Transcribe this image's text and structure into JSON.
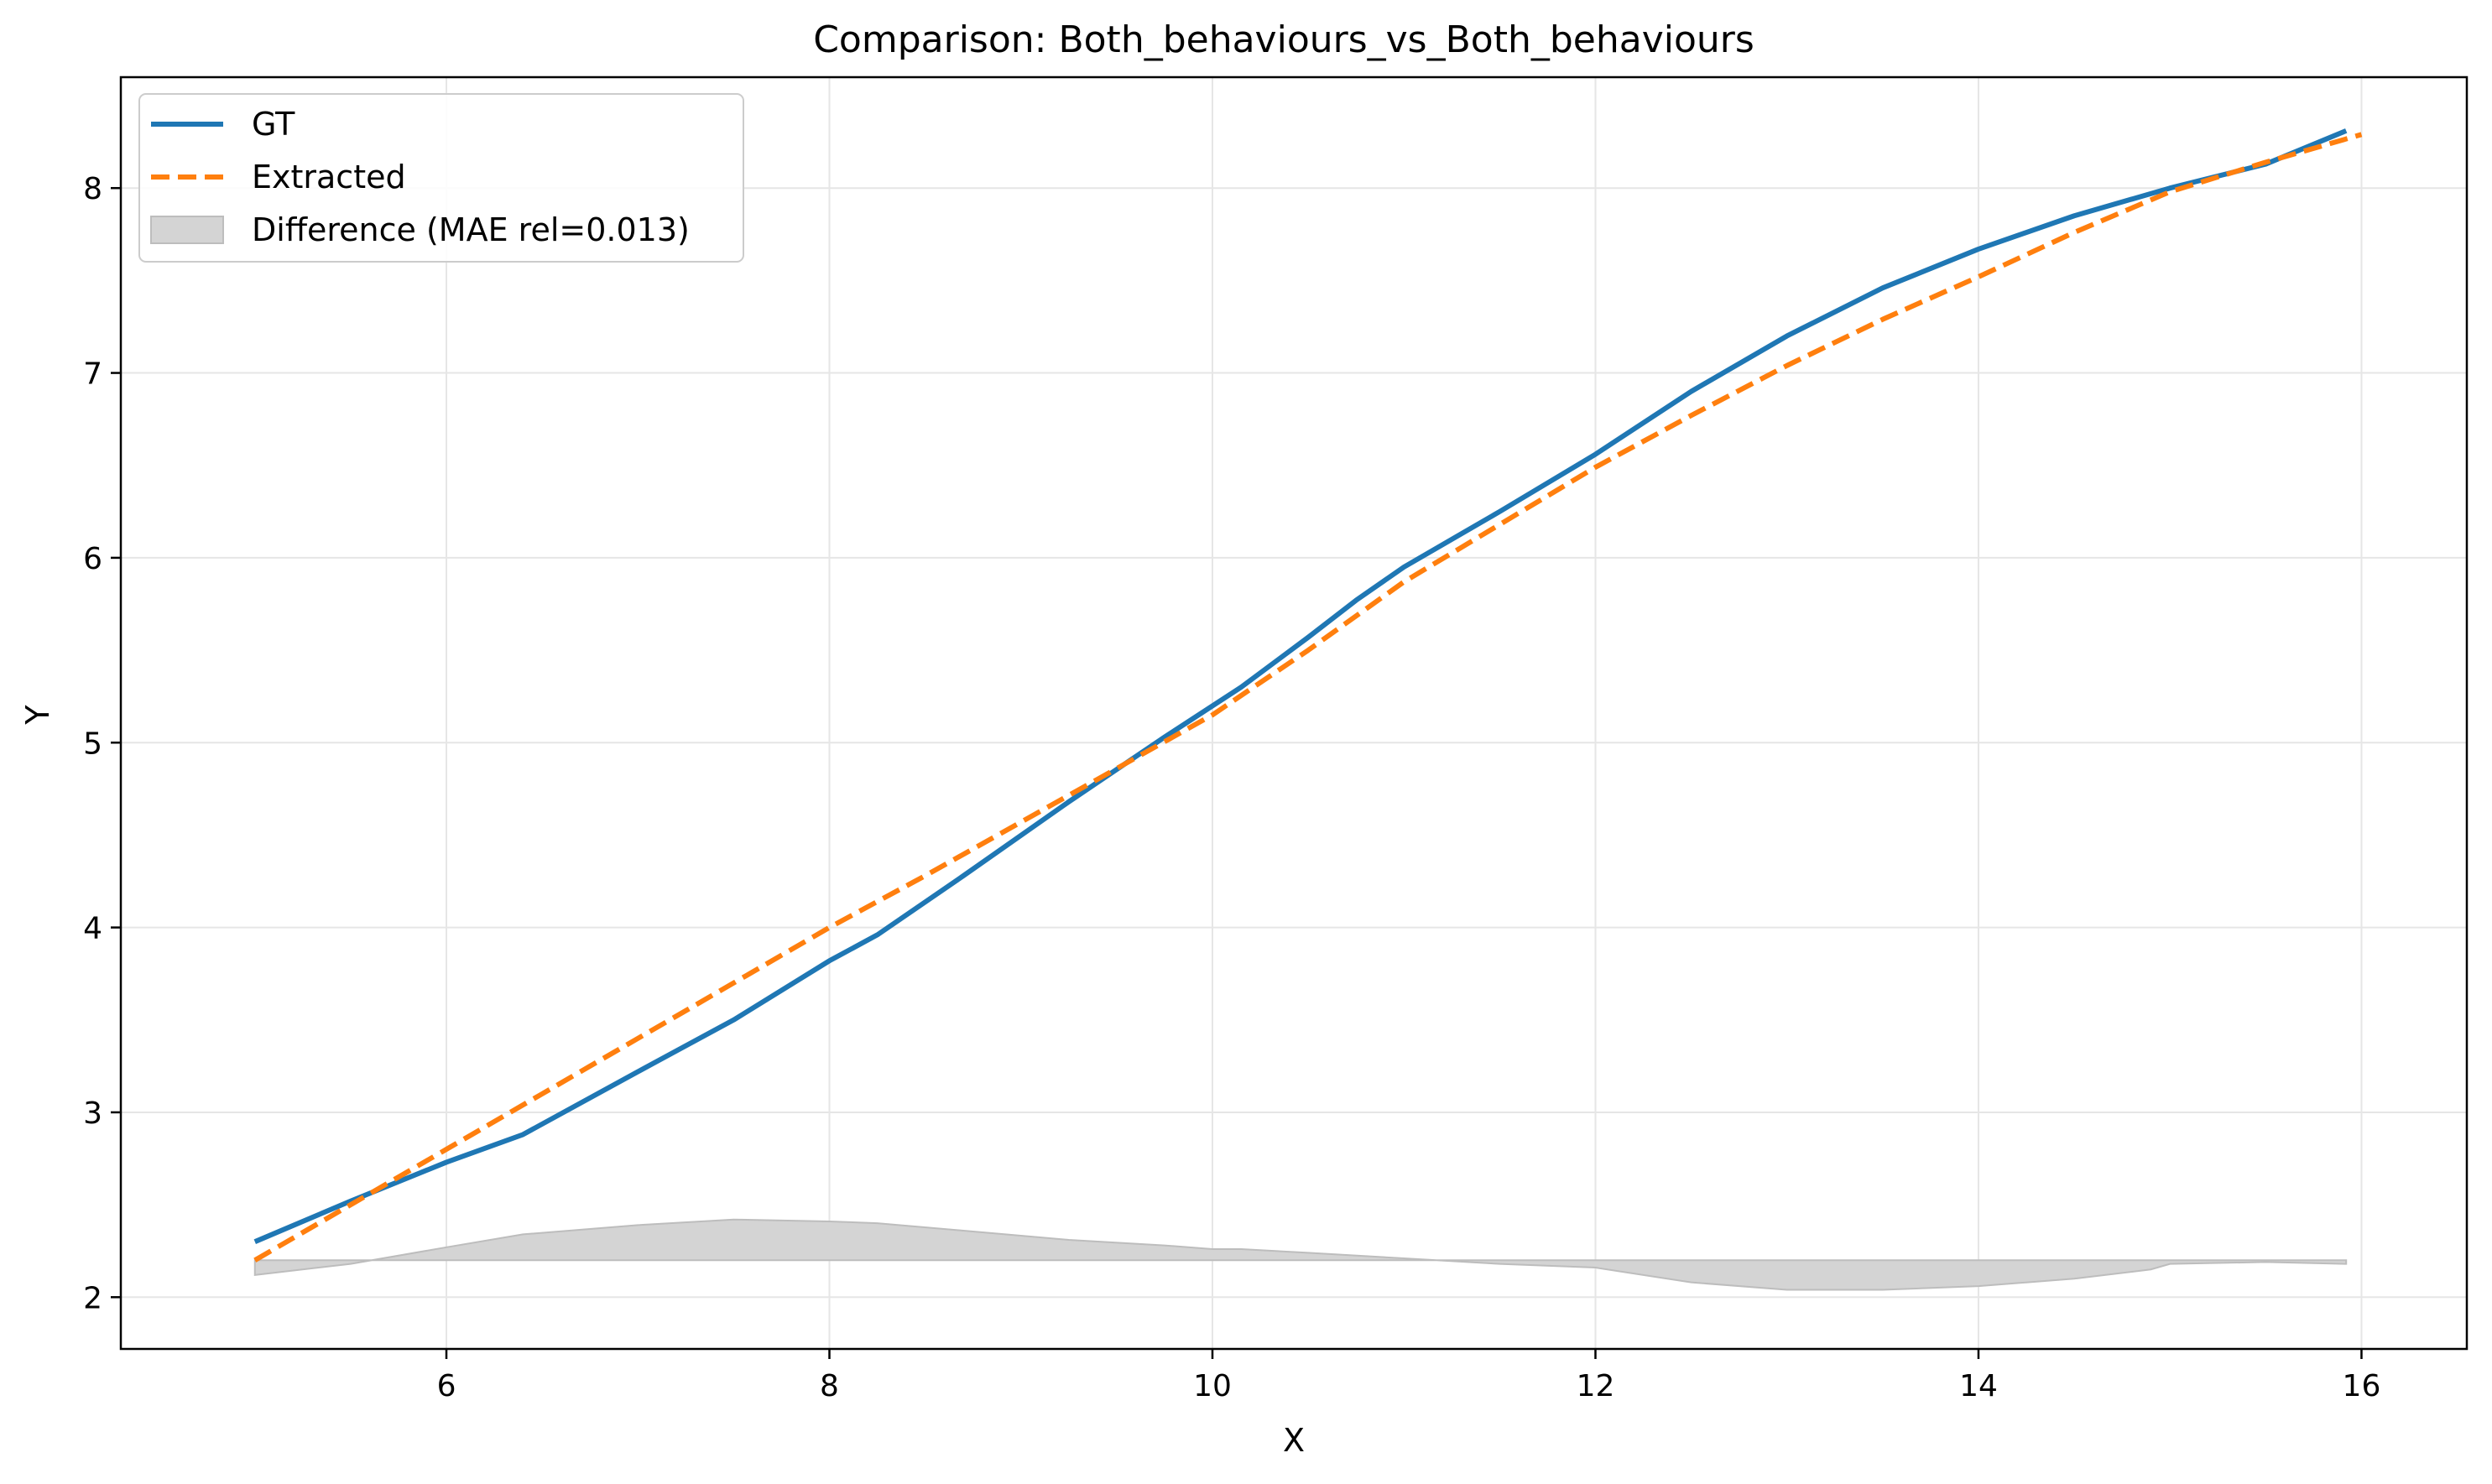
{
  "chart_data": {
    "type": "line",
    "title": "Comparison: Both_behaviours_vs_Both_behaviours",
    "xlabel": "X",
    "ylabel": "Y",
    "xlim": [
      4.3,
      16.55
    ],
    "ylim": [
      1.72,
      8.6
    ],
    "xticks": [
      6,
      8,
      10,
      12,
      14,
      16
    ],
    "yticks": [
      2,
      3,
      4,
      5,
      6,
      7,
      8
    ],
    "grid": true,
    "legend_position": "top-left",
    "series": [
      {
        "name": "GT",
        "style": "solid",
        "color": "#1f77b4",
        "x": [
          5.0,
          5.5,
          6.0,
          6.4,
          7.0,
          7.5,
          8.0,
          8.25,
          8.7,
          9.25,
          9.75,
          10.15,
          10.5,
          10.75,
          11.0,
          11.5,
          12.0,
          12.5,
          13.0,
          13.5,
          14.0,
          14.5,
          15.0,
          15.5,
          15.92
        ],
        "y": [
          2.3,
          2.52,
          2.73,
          2.88,
          3.22,
          3.5,
          3.82,
          3.96,
          4.28,
          4.68,
          5.03,
          5.3,
          5.57,
          5.77,
          5.95,
          6.25,
          6.56,
          6.9,
          7.2,
          7.46,
          7.67,
          7.85,
          8.0,
          8.13,
          8.31
        ]
      },
      {
        "name": "Extracted",
        "style": "dashed",
        "color": "#ff7f0e",
        "x": [
          5.0,
          5.5,
          6.0,
          6.5,
          7.0,
          7.5,
          8.0,
          8.5,
          9.0,
          9.5,
          10.0,
          10.5,
          11.0,
          11.5,
          12.0,
          12.5,
          13.0,
          13.5,
          14.0,
          14.5,
          15.0,
          15.5,
          16.0
        ],
        "y": [
          2.2,
          2.5,
          2.8,
          3.1,
          3.4,
          3.7,
          4.0,
          4.28,
          4.57,
          4.86,
          5.15,
          5.5,
          5.87,
          6.18,
          6.49,
          6.77,
          7.04,
          7.29,
          7.52,
          7.76,
          7.98,
          8.14,
          8.29
        ]
      }
    ],
    "difference_band": {
      "name": "Difference (MAE rel=0.013)",
      "color": "#d4d4d4",
      "baseline": 2.2,
      "x": [
        5.0,
        5.5,
        6.0,
        6.4,
        7.0,
        7.5,
        8.0,
        8.25,
        8.7,
        9.25,
        9.75,
        10.0,
        10.15,
        10.5,
        11.0,
        11.5,
        12.0,
        12.5,
        13.0,
        13.5,
        14.0,
        14.5,
        14.9,
        15.0,
        15.5,
        15.92
      ],
      "y": [
        2.12,
        2.18,
        2.27,
        2.34,
        2.39,
        2.42,
        2.41,
        2.4,
        2.36,
        2.31,
        2.28,
        2.26,
        2.26,
        2.24,
        2.21,
        2.18,
        2.16,
        2.08,
        2.04,
        2.04,
        2.06,
        2.1,
        2.15,
        2.18,
        2.19,
        2.18
      ]
    }
  }
}
